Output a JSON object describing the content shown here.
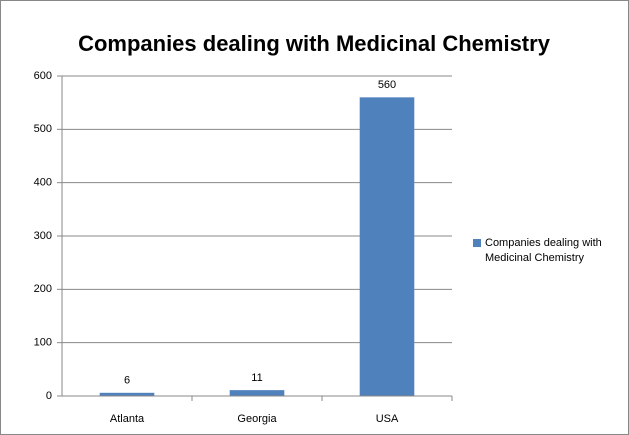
{
  "chart_data": {
    "type": "bar",
    "title": "Companies dealing with Medicinal Chemistry",
    "categories": [
      "Atlanta",
      "Georgia",
      "USA"
    ],
    "series": [
      {
        "name": "Companies dealing with Medicinal Chemistry",
        "color": "#4f81bd",
        "values": [
          6,
          11,
          560
        ]
      }
    ],
    "ylim": [
      0,
      600
    ],
    "yticks": [
      0,
      100,
      200,
      300,
      400,
      500,
      600
    ],
    "grid": true,
    "legend": "right",
    "data_labels": true
  }
}
